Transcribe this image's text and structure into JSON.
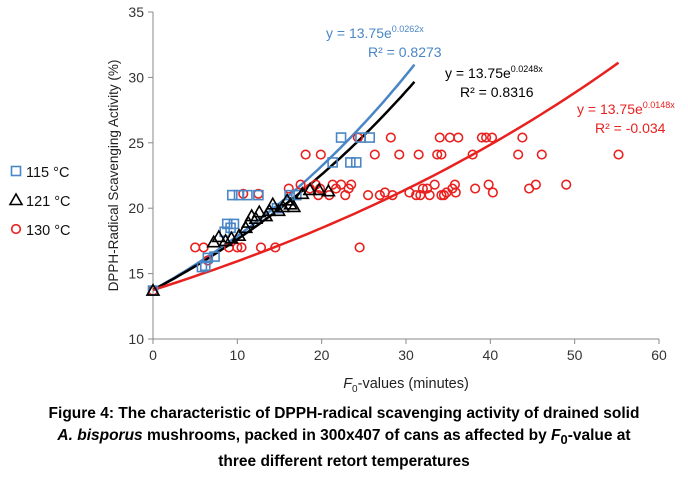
{
  "chart_data": {
    "type": "scatter",
    "xlabel_italic": "F",
    "xlabel_sub": "0",
    "xlabel_rest": "-values (minutes)",
    "ylabel": "DPPH-Radical Scavenging Activity (%)",
    "xlim": [
      0,
      60
    ],
    "ylim": [
      10,
      35
    ],
    "xticks": [
      0,
      10,
      20,
      30,
      40,
      50,
      60
    ],
    "yticks": [
      10,
      15,
      20,
      25,
      30,
      35
    ],
    "grid": false,
    "legend_position": "left",
    "series": [
      {
        "name": "115 °C",
        "marker": "square",
        "color": "#4a86c5",
        "points": [
          [
            0,
            13.7
          ],
          [
            5.8,
            15.5
          ],
          [
            6.2,
            15.6
          ],
          [
            6.5,
            16.2
          ],
          [
            7.3,
            16.3
          ],
          [
            8.5,
            18.2
          ],
          [
            8.8,
            18.8
          ],
          [
            9.2,
            18.5
          ],
          [
            9.6,
            18.8
          ],
          [
            9.4,
            21.0
          ],
          [
            10.2,
            21.0
          ],
          [
            11.2,
            21.0
          ],
          [
            12.5,
            21.0
          ],
          [
            14.7,
            20.0
          ],
          [
            16.2,
            21.0
          ],
          [
            17.0,
            21.0
          ],
          [
            21.3,
            23.5
          ],
          [
            22.3,
            25.4
          ],
          [
            23.4,
            23.5
          ],
          [
            24.1,
            23.5
          ],
          [
            24.6,
            25.4
          ],
          [
            25.7,
            25.4
          ]
        ],
        "fit": {
          "a": 13.75,
          "b": 0.0262,
          "x_end": 31
        },
        "equation_base": "y = 13.75e",
        "equation_exp": "0.0262x",
        "r2": "R² = 0.8273"
      },
      {
        "name": "121 °C",
        "marker": "triangle",
        "color": "#000000",
        "points": [
          [
            0,
            13.7
          ],
          [
            7.2,
            17.4
          ],
          [
            7.8,
            17.8
          ],
          [
            8.6,
            17.5
          ],
          [
            9.3,
            17.7
          ],
          [
            10.2,
            17.9
          ],
          [
            11.0,
            18.5
          ],
          [
            11.3,
            18.9
          ],
          [
            11.7,
            19.4
          ],
          [
            12.2,
            19.2
          ],
          [
            12.6,
            19.7
          ],
          [
            13.4,
            19.4
          ],
          [
            13.8,
            19.8
          ],
          [
            14.2,
            20.3
          ],
          [
            14.9,
            19.8
          ],
          [
            15.4,
            20.1
          ],
          [
            15.9,
            20.6
          ],
          [
            16.3,
            20.3
          ],
          [
            16.7,
            20.1
          ],
          [
            17.7,
            21.1
          ],
          [
            18.6,
            21.4
          ],
          [
            19.7,
            21.4
          ],
          [
            20.8,
            21.3
          ]
        ],
        "fit": {
          "a": 13.75,
          "b": 0.0248,
          "x_end": 31
        },
        "equation_base": "y = 13.75e",
        "equation_exp": "0.0248x",
        "r2": "R² = 0.8316"
      },
      {
        "name": "130 °C",
        "marker": "circle",
        "color": "#e8211f",
        "points": [
          [
            0,
            13.7
          ],
          [
            5.0,
            17.0
          ],
          [
            6.0,
            17.0
          ],
          [
            6.5,
            16.0
          ],
          [
            9.0,
            17.0
          ],
          [
            10.0,
            17.0
          ],
          [
            10.5,
            17.0
          ],
          [
            10.7,
            21.1
          ],
          [
            12.5,
            21.1
          ],
          [
            12.8,
            17.0
          ],
          [
            14.5,
            17.0
          ],
          [
            16.1,
            21.5
          ],
          [
            17.5,
            21.8
          ],
          [
            18.1,
            24.1
          ],
          [
            18.6,
            21.5
          ],
          [
            19.3,
            21.8
          ],
          [
            19.6,
            21.0
          ],
          [
            19.8,
            21.5
          ],
          [
            19.9,
            24.1
          ],
          [
            20.9,
            21.0
          ],
          [
            21.3,
            21.8
          ],
          [
            21.7,
            21.5
          ],
          [
            22.3,
            21.8
          ],
          [
            22.8,
            21.0
          ],
          [
            23.2,
            21.5
          ],
          [
            23.5,
            21.8
          ],
          [
            24.3,
            25.4
          ],
          [
            24.5,
            17.0
          ],
          [
            25.5,
            21.0
          ],
          [
            26.3,
            24.1
          ],
          [
            26.9,
            21.0
          ],
          [
            27.5,
            21.2
          ],
          [
            28.2,
            25.4
          ],
          [
            28.4,
            21.0
          ],
          [
            29.2,
            24.1
          ],
          [
            30.4,
            21.2
          ],
          [
            31.2,
            21.0
          ],
          [
            31.5,
            24.1
          ],
          [
            31.7,
            21.0
          ],
          [
            32.0,
            21.5
          ],
          [
            32.5,
            21.5
          ],
          [
            32.8,
            21.0
          ],
          [
            33.4,
            21.8
          ],
          [
            33.7,
            24.1
          ],
          [
            34.0,
            25.4
          ],
          [
            34.2,
            21.0
          ],
          [
            34.2,
            24.1
          ],
          [
            34.5,
            21.0
          ],
          [
            34.8,
            21.2
          ],
          [
            35.2,
            25.4
          ],
          [
            35.5,
            21.5
          ],
          [
            35.8,
            21.8
          ],
          [
            35.9,
            21.2
          ],
          [
            36.2,
            25.4
          ],
          [
            37.9,
            24.1
          ],
          [
            38.2,
            21.5
          ],
          [
            39.0,
            25.4
          ],
          [
            39.5,
            25.4
          ],
          [
            39.8,
            21.8
          ],
          [
            40.2,
            25.4
          ],
          [
            40.3,
            21.2
          ],
          [
            43.3,
            24.1
          ],
          [
            43.8,
            25.4
          ],
          [
            44.6,
            21.5
          ],
          [
            45.4,
            21.8
          ],
          [
            46.1,
            24.1
          ],
          [
            49.0,
            21.8
          ],
          [
            55.2,
            24.1
          ]
        ],
        "fit": {
          "a": 13.75,
          "b": 0.0148,
          "x_end": 55.2
        },
        "equation_base": "y = 13.75e",
        "equation_exp": "0.0148x",
        "r2": "R² = -0.034"
      }
    ]
  },
  "caption": {
    "line1": "Figure 4: The characteristic of DPPH-radical scavenging activity of drained solid",
    "line2_italic": "A. bisporus",
    "line2_rest_a": " mushrooms, packed in 300x407 of cans as affected by ",
    "line2_f": "F",
    "line2_sub": "0",
    "line2_rest_b": "-value at",
    "line3": "three different retort temperatures"
  }
}
